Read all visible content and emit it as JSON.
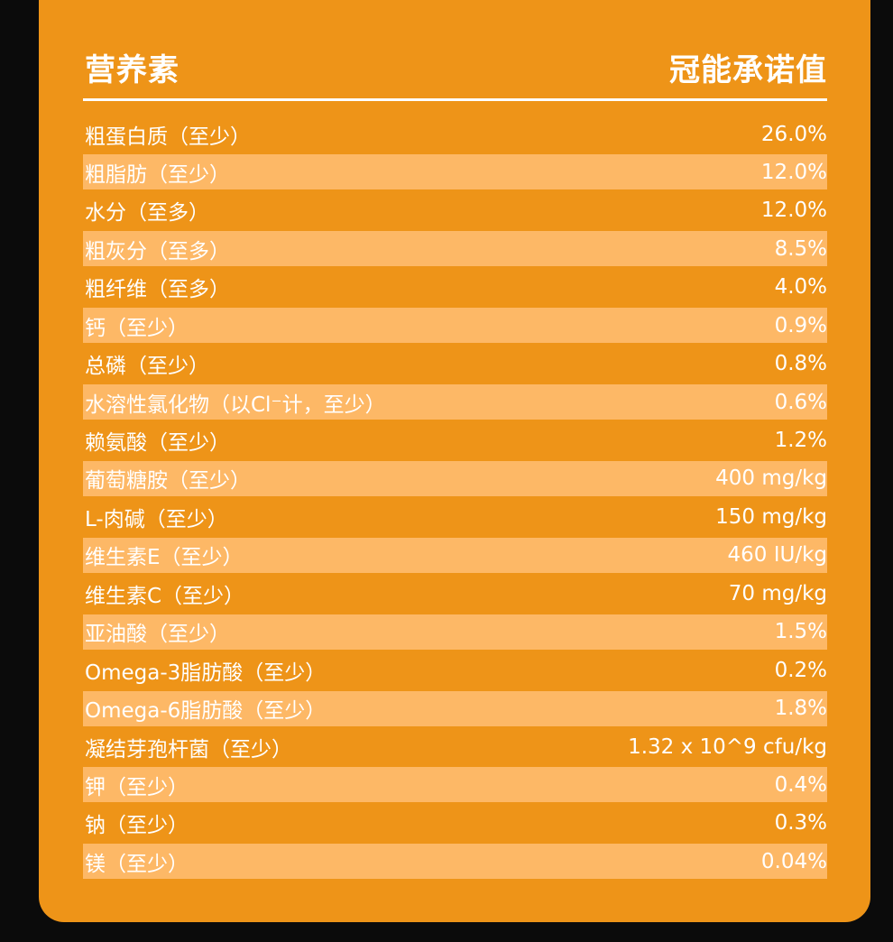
{
  "header": {
    "left": "营养素",
    "right": "冠能承诺值"
  },
  "rows": [
    {
      "name": "粗蛋白质（至少）",
      "value": "26.0%"
    },
    {
      "name": "粗脂肪（至少）",
      "value": "12.0%"
    },
    {
      "name": "水分（至多）",
      "value": "12.0%"
    },
    {
      "name": "粗灰分（至多）",
      "value": "8.5%"
    },
    {
      "name": "粗纤维（至多）",
      "value": "4.0%"
    },
    {
      "name": "钙（至少）",
      "value": "0.9%"
    },
    {
      "name": "总磷（至少）",
      "value": "0.8%"
    },
    {
      "name": "水溶性氯化物（以Cl⁻计，至少）",
      "value": "0.6%"
    },
    {
      "name": "赖氨酸（至少）",
      "value": "1.2%"
    },
    {
      "name": "葡萄糖胺（至少）",
      "value": "400 mg/kg"
    },
    {
      "name": "L-肉碱（至少）",
      "value": "150 mg/kg"
    },
    {
      "name": "维生素E（至少）",
      "value": "460 IU/kg"
    },
    {
      "name": "维生素C（至少）",
      "value": "70 mg/kg"
    },
    {
      "name": "亚油酸（至少）",
      "value": "1.5%"
    },
    {
      "name": "Omega-3脂肪酸（至少）",
      "value": "0.2%"
    },
    {
      "name": "Omega-6脂肪酸（至少）",
      "value": "1.8%"
    },
    {
      "name": "凝结芽孢杆菌（至少）",
      "value": "1.32 x 10^9 cfu/kg"
    },
    {
      "name": "钾（至少）",
      "value": "0.4%"
    },
    {
      "name": "钠（至少）",
      "value": "0.3%"
    },
    {
      "name": "镁（至少）",
      "value": "0.04%"
    }
  ]
}
